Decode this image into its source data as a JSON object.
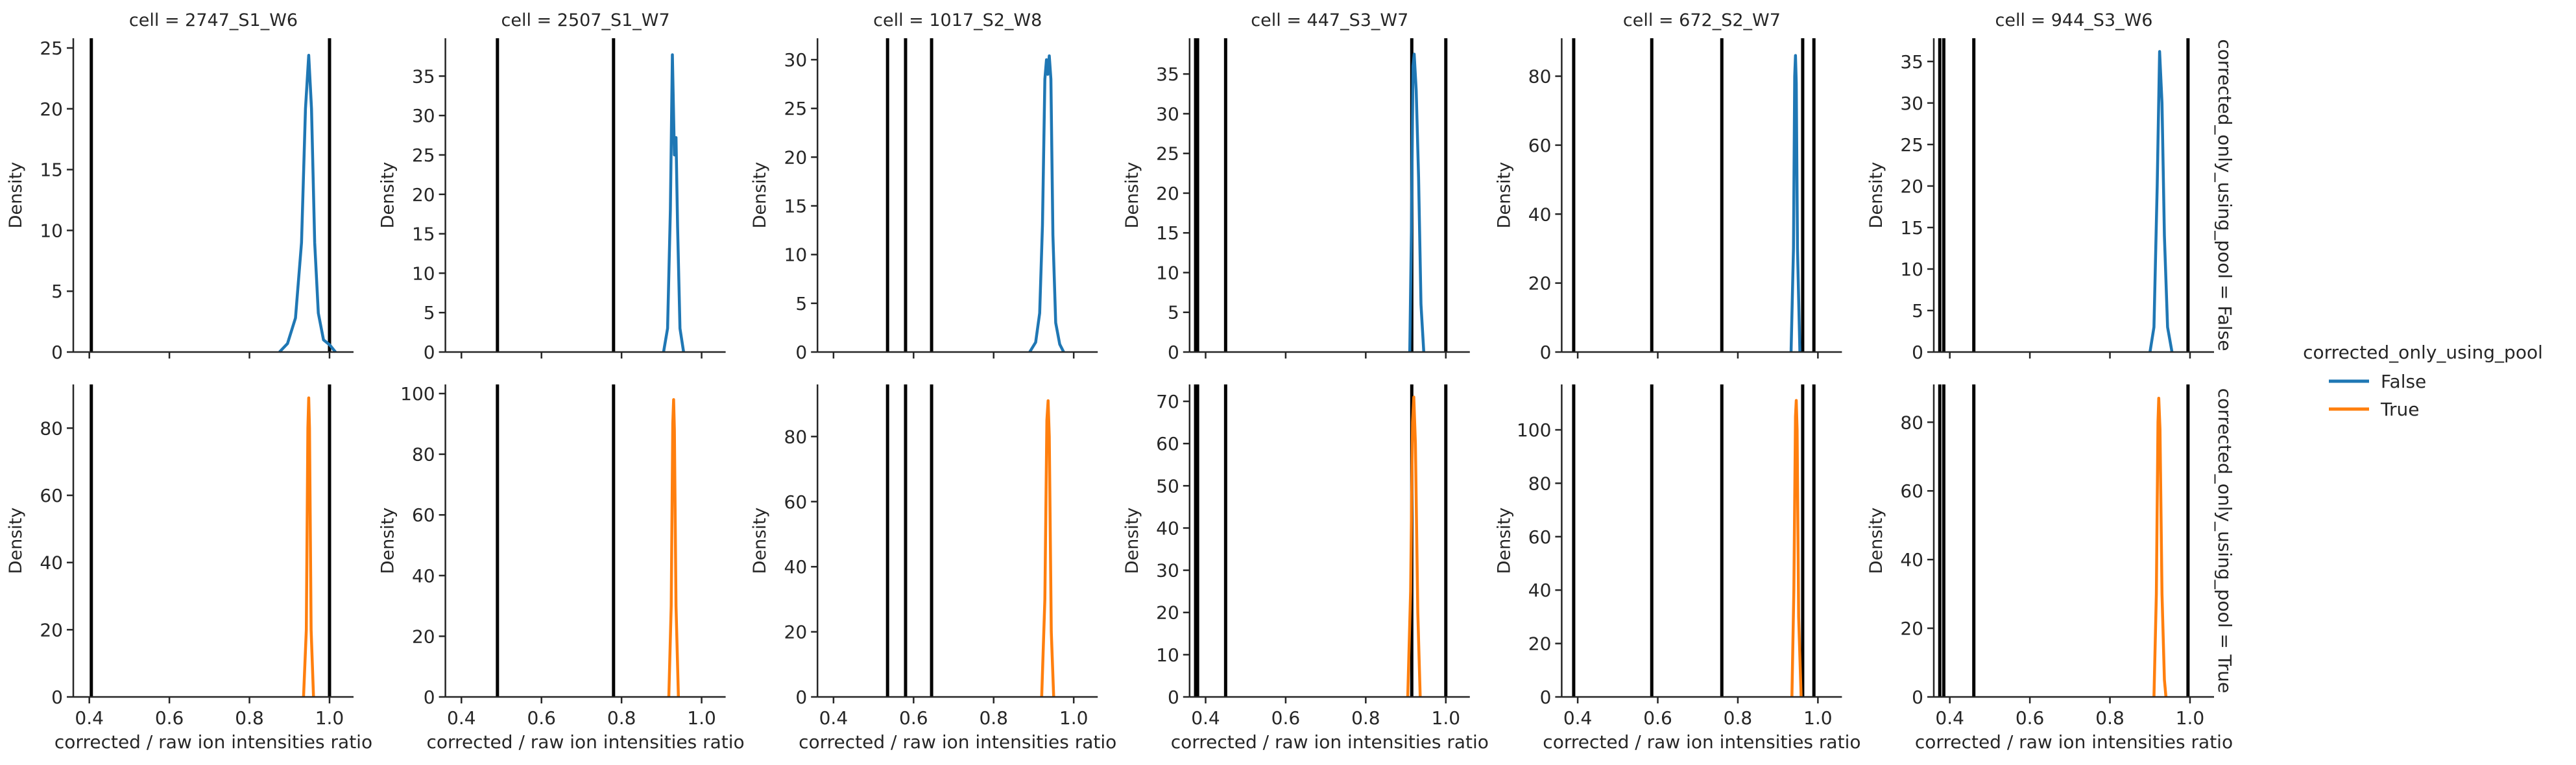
{
  "chart_data": {
    "type": "line",
    "kind": "kde density facet grid",
    "xlabel": "corrected / raw ion intensities ratio",
    "ylabel": "Density",
    "xlim": [
      0.36,
      1.06
    ],
    "x_ticks": [
      0.4,
      0.6,
      0.8,
      1.0
    ],
    "x_tick_labels": [
      "0.4",
      "0.6",
      "0.8",
      "1.0"
    ],
    "column_var": "cell",
    "row_var": "corrected_only_using_pool",
    "row_labels": [
      "corrected_only_using_pool = False",
      "corrected_only_using_pool = True"
    ],
    "legend": {
      "title": "corrected_only_using_pool",
      "placement": "right",
      "entries": [
        {
          "label": "False",
          "color": "#1f77b4"
        },
        {
          "label": "True",
          "color": "#ff7f0e"
        }
      ]
    },
    "columns": [
      {
        "title": "cell = 2747_S1_W6",
        "vlines": [
          0.405,
          1.0
        ],
        "rows": [
          {
            "ylim": [
              0,
              25.8
            ],
            "yticks": [
              0,
              5,
              10,
              15,
              20,
              25
            ],
            "curve": [
              [
                0.875,
                0
              ],
              [
                0.895,
                0.7
              ],
              [
                0.915,
                2.8
              ],
              [
                0.93,
                9
              ],
              [
                0.94,
                20
              ],
              [
                0.948,
                24.4
              ],
              [
                0.955,
                20
              ],
              [
                0.963,
                9
              ],
              [
                0.972,
                3.2
              ],
              [
                0.985,
                1
              ],
              [
                1.0,
                0.6
              ],
              [
                1.015,
                0
              ]
            ]
          },
          {
            "ylim": [
              0,
              93
            ],
            "yticks": [
              0,
              20,
              40,
              60,
              80
            ],
            "curve": [
              [
                0.935,
                0
              ],
              [
                0.942,
                20
              ],
              [
                0.946,
                80
              ],
              [
                0.948,
                89
              ],
              [
                0.95,
                80
              ],
              [
                0.954,
                20
              ],
              [
                0.96,
                0
              ]
            ]
          }
        ]
      },
      {
        "title": "cell = 2507_S1_W7",
        "vlines": [
          0.49,
          0.78
        ],
        "rows": [
          {
            "ylim": [
              0,
              39.8
            ],
            "yticks": [
              0,
              5,
              10,
              15,
              20,
              25,
              30,
              35
            ],
            "curve": [
              [
                0.905,
                0
              ],
              [
                0.915,
                3
              ],
              [
                0.922,
                18
              ],
              [
                0.927,
                37.7
              ],
              [
                0.932,
                25
              ],
              [
                0.936,
                27.2
              ],
              [
                0.94,
                16
              ],
              [
                0.946,
                3
              ],
              [
                0.955,
                0
              ]
            ]
          },
          {
            "ylim": [
              0,
              103
            ],
            "yticks": [
              0,
              20,
              40,
              60,
              80,
              100
            ],
            "curve": [
              [
                0.918,
                0
              ],
              [
                0.924,
                30
              ],
              [
                0.928,
                90
              ],
              [
                0.93,
                98
              ],
              [
                0.932,
                88
              ],
              [
                0.936,
                30
              ],
              [
                0.942,
                0
              ]
            ]
          }
        ]
      },
      {
        "title": "cell = 1017_S2_W8",
        "vlines": [
          0.535,
          0.58,
          0.645
        ],
        "rows": [
          {
            "ylim": [
              0,
              32.2
            ],
            "yticks": [
              0,
              5,
              10,
              15,
              20,
              25,
              30
            ],
            "curve": [
              [
                0.89,
                0
              ],
              [
                0.905,
                1
              ],
              [
                0.915,
                4
              ],
              [
                0.922,
                13
              ],
              [
                0.928,
                28
              ],
              [
                0.932,
                30
              ],
              [
                0.935,
                28.5
              ],
              [
                0.939,
                30.4
              ],
              [
                0.943,
                28
              ],
              [
                0.948,
                12
              ],
              [
                0.955,
                3
              ],
              [
                0.965,
                0.8
              ],
              [
                0.975,
                0
              ]
            ]
          },
          {
            "ylim": [
              0,
              96
            ],
            "yticks": [
              0,
              20,
              40,
              60,
              80
            ],
            "curve": [
              [
                0.92,
                0
              ],
              [
                0.928,
                30
              ],
              [
                0.933,
                85
              ],
              [
                0.936,
                91
              ],
              [
                0.939,
                80
              ],
              [
                0.944,
                20
              ],
              [
                0.95,
                0
              ]
            ]
          }
        ]
      },
      {
        "title": "cell = 447_S3_W7",
        "vlines": [
          0.375,
          0.38,
          0.45,
          0.915,
          1.0
        ],
        "rows": [
          {
            "ylim": [
              0,
              39.5
            ],
            "yticks": [
              0,
              5,
              10,
              15,
              20,
              25,
              30,
              35
            ],
            "curve": [
              [
                0.91,
                0
              ],
              [
                0.914,
                15
              ],
              [
                0.918,
                36
              ],
              [
                0.921,
                37.5
              ],
              [
                0.926,
                33
              ],
              [
                0.932,
                22
              ],
              [
                0.938,
                6
              ],
              [
                0.945,
                0
              ]
            ]
          },
          {
            "ylim": [
              0,
              74
            ],
            "yticks": [
              0,
              10,
              20,
              30,
              40,
              50,
              60,
              70
            ],
            "curve": [
              [
                0.905,
                0
              ],
              [
                0.912,
                25
              ],
              [
                0.917,
                65
              ],
              [
                0.92,
                71
              ],
              [
                0.924,
                60
              ],
              [
                0.93,
                20
              ],
              [
                0.936,
                0
              ]
            ]
          }
        ]
      },
      {
        "title": "cell = 672_S2_W7",
        "vlines": [
          0.39,
          0.585,
          0.76,
          0.962,
          0.99
        ],
        "rows": [
          {
            "ylim": [
              0,
              91
            ],
            "yticks": [
              0,
              20,
              40,
              60,
              80
            ],
            "curve": [
              [
                0.933,
                0
              ],
              [
                0.939,
                30
              ],
              [
                0.942,
                80
              ],
              [
                0.944,
                86
              ],
              [
                0.946,
                78
              ],
              [
                0.949,
                30
              ],
              [
                0.955,
                0
              ]
            ]
          },
          {
            "ylim": [
              0,
              117
            ],
            "yticks": [
              0,
              20,
              40,
              60,
              80,
              100
            ],
            "curve": [
              [
                0.935,
                0
              ],
              [
                0.94,
                40
              ],
              [
                0.944,
                105
              ],
              [
                0.946,
                111
              ],
              [
                0.948,
                100
              ],
              [
                0.952,
                30
              ],
              [
                0.958,
                0
              ]
            ]
          }
        ]
      },
      {
        "title": "cell = 944_S3_W6",
        "vlines": [
          0.375,
          0.385,
          0.46,
          0.995
        ],
        "rows": [
          {
            "ylim": [
              0,
              37.8
            ],
            "yticks": [
              0,
              5,
              10,
              15,
              20,
              25,
              30,
              35
            ],
            "curve": [
              [
                0.9,
                0
              ],
              [
                0.91,
                3
              ],
              [
                0.918,
                20
              ],
              [
                0.924,
                36.2
              ],
              [
                0.93,
                30
              ],
              [
                0.936,
                14
              ],
              [
                0.944,
                3
              ],
              [
                0.955,
                0
              ]
            ]
          },
          {
            "ylim": [
              0,
              91
            ],
            "yticks": [
              0,
              20,
              40,
              60,
              80
            ],
            "curve": [
              [
                0.91,
                0
              ],
              [
                0.916,
                30
              ],
              [
                0.92,
                80
              ],
              [
                0.922,
                87
              ],
              [
                0.925,
                78
              ],
              [
                0.93,
                30
              ],
              [
                0.936,
                5
              ],
              [
                0.94,
                0
              ]
            ]
          }
        ]
      }
    ]
  }
}
